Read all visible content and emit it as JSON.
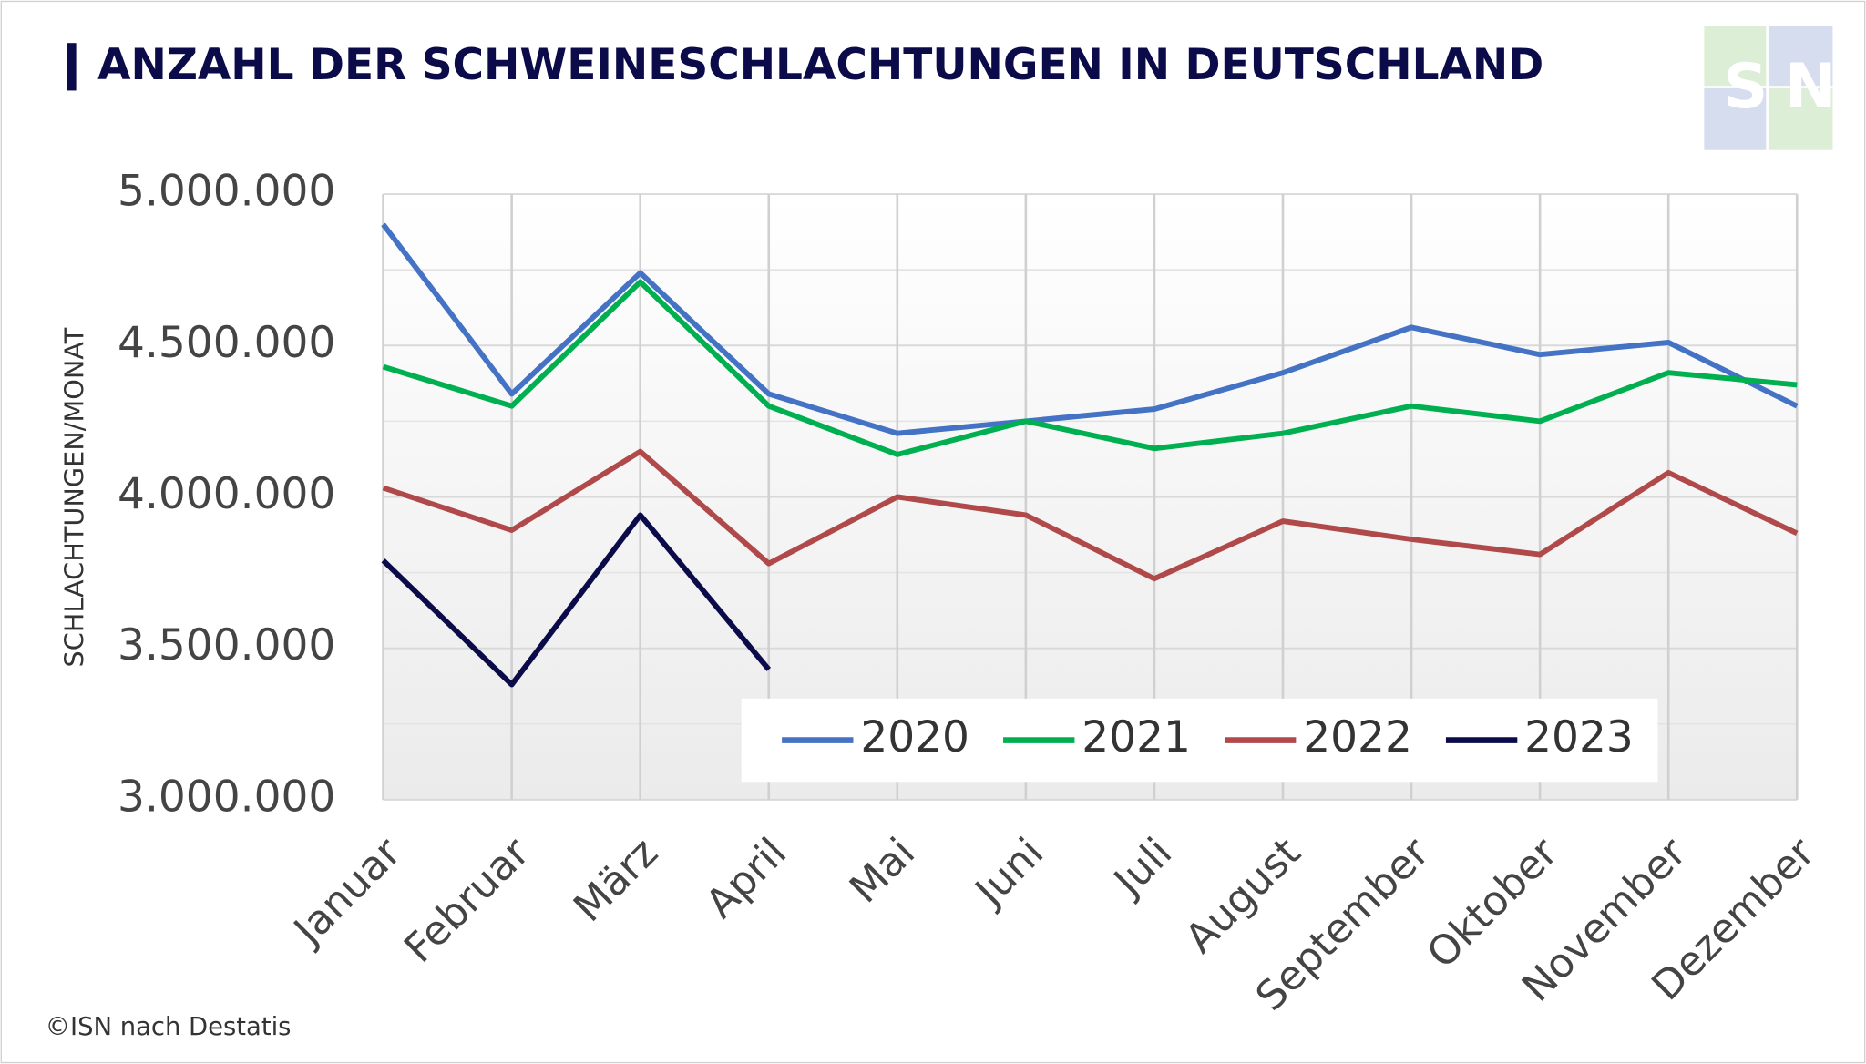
{
  "logo": "ISN",
  "footer": "©ISN nach Destatis",
  "chart_data": {
    "type": "line",
    "title": "ANZAHL DER SCHWEINESCHLACHTUNGEN IN DEUTSCHLAND",
    "y_label": "SCHLACHTUNGEN/MONAT",
    "categories": [
      "Januar",
      "Februar",
      "März",
      "April",
      "Mai",
      "Juni",
      "Juli",
      "August",
      "September",
      "Oktober",
      "November",
      "Dezember"
    ],
    "series": [
      {
        "name": "2020",
        "color": "#4472c4",
        "values": [
          4900000,
          4340000,
          4740000,
          4340000,
          4210000,
          4250000,
          4290000,
          4410000,
          4560000,
          4470000,
          4510000,
          4300000
        ]
      },
      {
        "name": "2021",
        "color": "#00b050",
        "values": [
          4430000,
          4300000,
          4710000,
          4300000,
          4140000,
          4250000,
          4160000,
          4210000,
          4300000,
          4250000,
          4410000,
          4370000
        ]
      },
      {
        "name": "2022",
        "color": "#b04a4a",
        "values": [
          4030000,
          3890000,
          4150000,
          3780000,
          4000000,
          3940000,
          3730000,
          3920000,
          3860000,
          3810000,
          4080000,
          3880000
        ]
      },
      {
        "name": "2023",
        "color": "#0b0b4a",
        "values": [
          3790000,
          3380000,
          3940000,
          3430000,
          null,
          null,
          null,
          null,
          null,
          null,
          null,
          null
        ]
      }
    ],
    "ylim": [
      3000000,
      5000000
    ],
    "yticks": [
      {
        "value": 3000000,
        "label": "3.000.000"
      },
      {
        "value": 3500000,
        "label": "3.500.000"
      },
      {
        "value": 4000000,
        "label": "4.000.000"
      },
      {
        "value": 4500000,
        "label": "4.500.000"
      },
      {
        "value": 5000000,
        "label": "5.000.000"
      }
    ],
    "grid": true,
    "legend": "bottom"
  }
}
